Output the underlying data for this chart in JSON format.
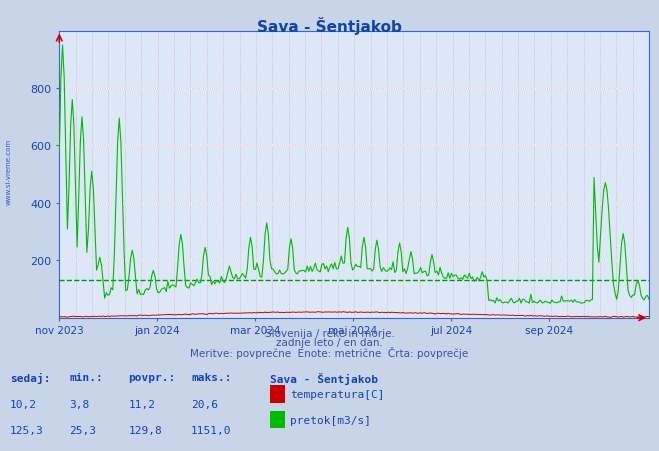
{
  "title": "Sava - Šentjakob",
  "title_color": "#1144aa",
  "bg_color": "#c8d4e8",
  "plot_bg_color": "#dce8f8",
  "xlabel_lines": [
    "Slovenija / reke in morje.",
    "zadnje leto / en dan.",
    "Meritve: povprečne  Enote: metrične  Črta: povprečje"
  ],
  "xlabel_color": "#3355aa",
  "ylim": [
    0,
    1000
  ],
  "yticks": [
    200,
    400,
    600,
    800
  ],
  "temp_color": "#cc0000",
  "pretok_color": "#00bb00",
  "avg_pretok_color": "#009900",
  "avg_pretok_line": 129.8,
  "tick_label_color": "#1144bb",
  "x_tick_labels": [
    "nov 2023",
    "jan 2024",
    "mar 2024",
    "maj 2024",
    "jul 2024",
    "sep 2024"
  ],
  "x_tick_positions_frac": [
    0.0,
    0.167,
    0.334,
    0.498,
    0.665,
    0.832
  ],
  "legend_title": "Sava - Šentjakob",
  "legend_items": [
    {
      "label": "temperatura[C]",
      "color": "#cc0000"
    },
    {
      "label": "pretok[m3/s]",
      "color": "#00bb00"
    }
  ],
  "stats_headers": [
    "sedaj:",
    "min.:",
    "povpr.:",
    "maks.:"
  ],
  "stats_temp": [
    "10,2",
    "3,8",
    "11,2",
    "20,6"
  ],
  "stats_pretok": [
    "125,3",
    "25,3",
    "129,8",
    "1151,0"
  ],
  "sidebar_text": "www.si-vreme.com",
  "n_points": 365,
  "xlim": [
    0,
    365
  ],
  "minor_vgrid_color": "#ddaaaa",
  "major_hgrid_color": "#cc8888",
  "white_hgrid_color": "#ffffff",
  "spine_color": "#3366cc"
}
